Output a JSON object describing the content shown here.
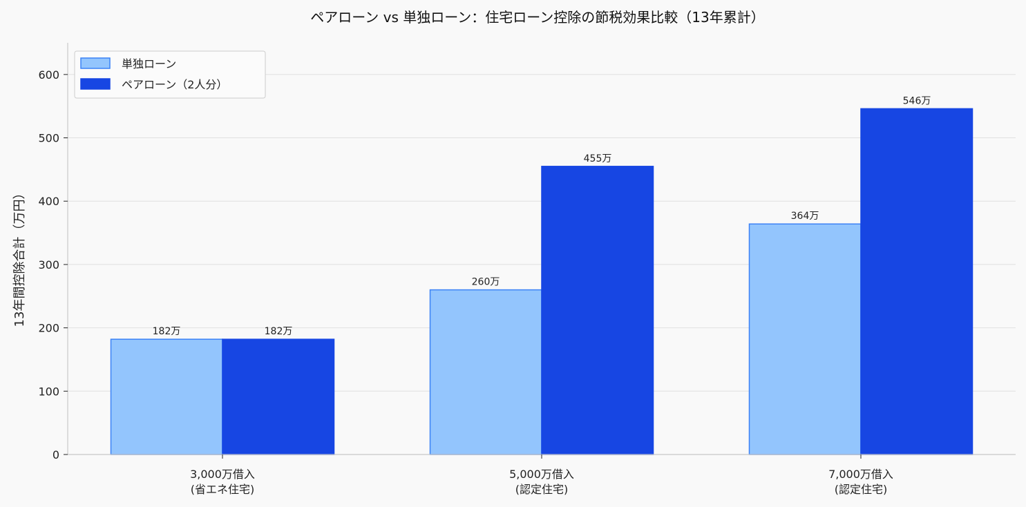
{
  "chart_data": {
    "type": "bar",
    "title": "ペアローン vs 単独ローン：住宅ローン控除の節税効果比較（13年累計）",
    "xlabel": "",
    "ylabel": "13年間控除合計（万円）",
    "ylim": [
      0,
      650
    ],
    "yticks": [
      "0",
      "100",
      "200",
      "300",
      "400",
      "500",
      "600"
    ],
    "grid": "horizontal",
    "legend_position": "top-left",
    "categories": [
      [
        "3,000万借入",
        "(省エネ住宅)"
      ],
      [
        "5,000万借入",
        "(認定住宅)"
      ],
      [
        "7,000万借入",
        "(認定住宅)"
      ]
    ],
    "series": [
      {
        "name": "単独ローン",
        "values": [
          182,
          260,
          364
        ],
        "labels": [
          "182万",
          "260万",
          "364万"
        ],
        "color": "#93c5fd",
        "edge_color": "#3b82f6"
      },
      {
        "name": "ペアローン（2人分）",
        "values": [
          182,
          455,
          546
        ],
        "labels": [
          "182万",
          "455万",
          "546万"
        ],
        "color": "#1746e3",
        "edge_color": "#1746e3"
      }
    ],
    "colors": {
      "background": "#f9f9f9",
      "grid": "#e0e0e0",
      "axis": "#c8c8c8"
    }
  }
}
